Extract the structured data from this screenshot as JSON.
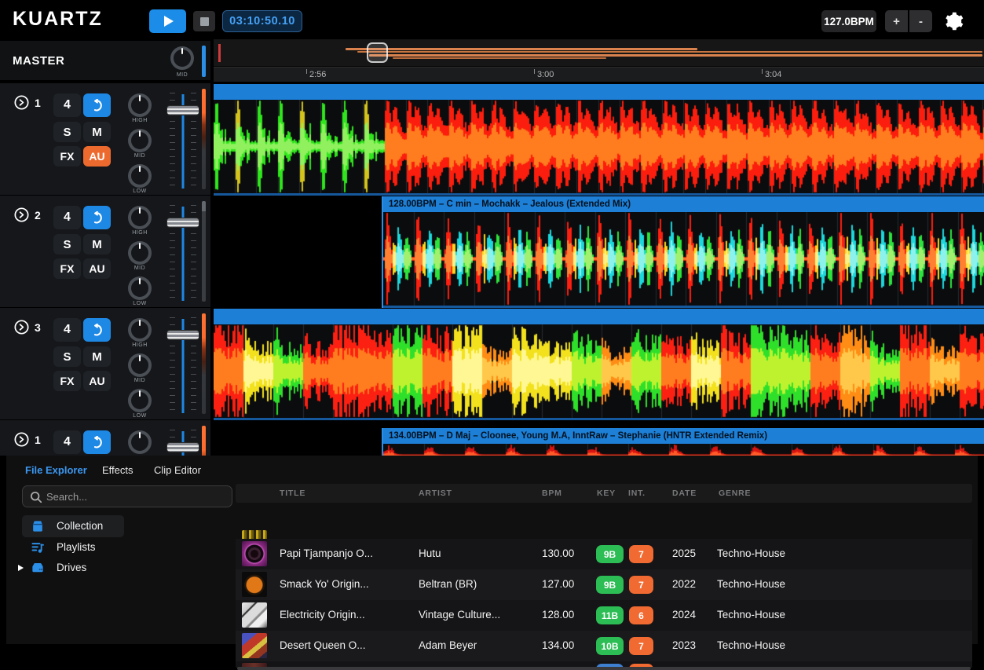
{
  "topbar": {
    "logo": "KUARTZ",
    "time": "03:10:50.10",
    "bpm": "127.0BPM",
    "plus": "+",
    "minus": "-"
  },
  "master": {
    "label": "MASTER",
    "knob_label": "MID"
  },
  "deck_labels": {
    "beats": "4",
    "s": "S",
    "m": "M",
    "fx": "FX",
    "au": "AU",
    "eq": [
      "HIGH",
      "MID",
      "LOW"
    ]
  },
  "decks": [
    {
      "number": "1",
      "au_active": true,
      "meter_hot": true
    },
    {
      "number": "2",
      "au_active": false,
      "meter_hot": false
    },
    {
      "number": "3",
      "au_active": false,
      "meter_hot": true
    },
    {
      "number": "1",
      "au_active": false,
      "meter_hot": true
    }
  ],
  "timeline": {
    "ticks": [
      "2:56",
      "3:00",
      "3:04"
    ]
  },
  "lanes": [
    {
      "header": ""
    },
    {
      "header": "128.00BPM – C min – Mochakk – Jealous (Extended Mix)"
    },
    {
      "header": ""
    },
    {
      "header": "134.00BPM – D Maj – Cloonee, Young M.A, InntRaw – Stephanie (HNTR Extended Remix)"
    }
  ],
  "browser": {
    "tabs": [
      {
        "label": "File Explorer",
        "active": true
      },
      {
        "label": "Effects",
        "active": false
      },
      {
        "label": "Clip Editor",
        "active": false
      }
    ],
    "search": {
      "placeholder": "Search..."
    },
    "tree": [
      {
        "label": "Collection"
      },
      {
        "label": "Playlists"
      },
      {
        "label": "Drives",
        "expandable": true
      }
    ],
    "table": {
      "columns": [
        "TITLE",
        "ARTIST",
        "BPM",
        "KEY",
        "INT.",
        "DATE",
        "GENRE"
      ],
      "rows": [
        {
          "title": "Papi Tjampanjo O...",
          "artist": "Hutu",
          "bpm": "130.00",
          "key": "9B",
          "intensity": "7",
          "date": "2025",
          "genre": "Techno-House"
        },
        {
          "title": "Smack Yo' Origin...",
          "artist": "Beltran (BR)",
          "bpm": "127.00",
          "key": "9B",
          "intensity": "7",
          "date": "2022",
          "genre": "Techno-House"
        },
        {
          "title": "Electricity Origin...",
          "artist": "Vintage Culture...",
          "bpm": "128.00",
          "key": "11B",
          "intensity": "6",
          "date": "2024",
          "genre": "Techno-House"
        },
        {
          "title": "Desert Queen O...",
          "artist": "Adam Beyer",
          "bpm": "134.00",
          "key": "10B",
          "intensity": "7",
          "date": "2023",
          "genre": "Techno-House"
        }
      ]
    }
  },
  "colors": {
    "accent_blue": "#2b8fe8",
    "header_blue": "#1d7fd6",
    "orange": "#f06a31",
    "key_green": "#2dbd55",
    "time_text": "#45a1f5"
  }
}
